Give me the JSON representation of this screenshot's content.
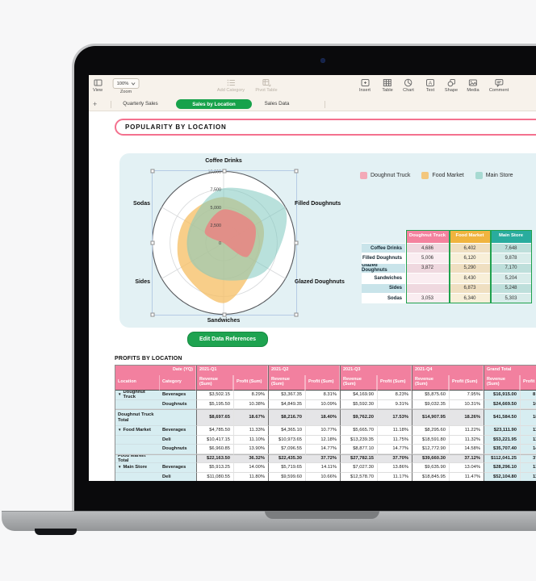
{
  "toolbar": {
    "view": {
      "label": "View"
    },
    "zoom": {
      "label": "Zoom",
      "value": "100%"
    },
    "add_category": {
      "label": "Add Category"
    },
    "pivot_table": {
      "label": "Pivot Table"
    },
    "insert": {
      "label": "Insert"
    },
    "table": {
      "label": "Table"
    },
    "chart": {
      "label": "Chart"
    },
    "text": {
      "label": "Text"
    },
    "shape": {
      "label": "Shape"
    },
    "media": {
      "label": "Media"
    },
    "comment": {
      "label": "Comment"
    }
  },
  "tabbar": {
    "add": "+",
    "tabs": [
      {
        "label": "Quarterly Sales",
        "active": false
      },
      {
        "label": "Sales by Location",
        "active": true
      },
      {
        "label": "Sales Data",
        "active": false
      }
    ]
  },
  "sheet": {
    "title": "POPULARITY BY LOCATION",
    "edit_button": "Edit Data References",
    "profits_title": "PROFITS BY LOCATION"
  },
  "legend": [
    {
      "label": "Doughnut Truck",
      "color": "#F3A9B7"
    },
    {
      "label": "Food Market",
      "color": "#F3C77D"
    },
    {
      "label": "Main Store",
      "color": "#A7DAD2"
    }
  ],
  "chart_data": {
    "type": "radar",
    "title": "Popularity by Location",
    "categories": [
      "Coffee Drinks",
      "Filled Doughnuts",
      "Glazed Doughnuts",
      "Sandwiches",
      "Sides",
      "Sodas"
    ],
    "series": [
      {
        "name": "Doughnut Truck",
        "color": "#E98583",
        "opacity": 0.85,
        "values": [
          4686,
          5006,
          3872,
          0,
          0,
          3053
        ]
      },
      {
        "name": "Food Market",
        "color": "#F5BE62",
        "opacity": 0.75,
        "values": [
          6402,
          6120,
          5290,
          8430,
          6873,
          6340
        ]
      },
      {
        "name": "Main Store",
        "color": "#7FC9C0",
        "opacity": 0.55,
        "values": [
          7648,
          9878,
          7170,
          5204,
          5248,
          5303
        ]
      }
    ],
    "r_axis": {
      "min": 0,
      "max": 10000,
      "ticks": [
        {
          "label": "10,000",
          "value": 10000
        },
        {
          "label": "7,500",
          "value": 7500
        },
        {
          "label": "5,000",
          "value": 5000
        },
        {
          "label": "2,500",
          "value": 2500
        },
        {
          "label": "0",
          "value": 0
        }
      ]
    },
    "grid": "circular",
    "legend_position": "top-right"
  },
  "popularity_table": {
    "columns": [
      "Doughnut Truck",
      "Food Market",
      "Main Store"
    ],
    "rows": [
      {
        "label": "Coffee Drinks",
        "values": [
          "4,686",
          "6,402",
          "7,648"
        ]
      },
      {
        "label": "Filled Doughnuts",
        "values": [
          "5,006",
          "6,120",
          "9,878"
        ]
      },
      {
        "label": "Glazed Doughnuts",
        "values": [
          "3,872",
          "5,290",
          "7,170"
        ]
      },
      {
        "label": "Sandwiches",
        "values": [
          "",
          "8,430",
          "5,204"
        ]
      },
      {
        "label": "Sides",
        "values": [
          "",
          "6,873",
          "5,248"
        ]
      },
      {
        "label": "Sodas",
        "values": [
          "3,053",
          "6,340",
          "5,303"
        ]
      }
    ]
  },
  "profits_table": {
    "corner_label": "Date (YQ)",
    "row_headers": [
      "Location",
      "Category"
    ],
    "groups": [
      "2021-Q1",
      "2021-Q2",
      "2021-Q3",
      "2021-Q4",
      "Grand Total"
    ],
    "sub_headers": [
      "Revenue (Sum)",
      "Profit (Sum)"
    ],
    "rows": [
      {
        "type": "data",
        "location": "Doughnut Truck",
        "disclosure": true,
        "category": "Beverages",
        "values": [
          "$3,502.15",
          "8.29%",
          "$3,367.35",
          "8.31%",
          "$4,169.90",
          "8.23%",
          "$5,875.60",
          "7.95%",
          "$16,915.00",
          "8"
        ]
      },
      {
        "type": "data",
        "location": "",
        "category": "Doughnuts",
        "values": [
          "$5,195.50",
          "10.38%",
          "$4,849.35",
          "10.09%",
          "$5,592.30",
          "9.31%",
          "$9,032.35",
          "10.31%",
          "$24,669.50",
          "10"
        ]
      },
      {
        "type": "total",
        "location": "Doughnut Truck Total",
        "category": "",
        "values": [
          "$8,697.65",
          "18.67%",
          "$8,216.70",
          "18.40%",
          "$9,762.20",
          "17.53%",
          "$14,907.95",
          "18.26%",
          "$41,584.50",
          "18"
        ]
      },
      {
        "type": "data",
        "location": "Food Market",
        "disclosure": true,
        "category": "Beverages",
        "values": [
          "$4,785.50",
          "11.33%",
          "$4,365.10",
          "10.77%",
          "$5,665.70",
          "11.18%",
          "$8,295.60",
          "11.22%",
          "$23,111.90",
          "11"
        ]
      },
      {
        "type": "data",
        "location": "",
        "category": "Deli",
        "values": [
          "$10,417.15",
          "11.10%",
          "$10,973.65",
          "12.18%",
          "$13,239.35",
          "11.75%",
          "$18,591.80",
          "11.32%",
          "$53,221.95",
          "11"
        ]
      },
      {
        "type": "data",
        "location": "",
        "category": "Doughnuts",
        "values": [
          "$6,960.85",
          "13.90%",
          "$7,096.55",
          "14.77%",
          "$8,877.10",
          "14.77%",
          "$12,772.90",
          "14.58%",
          "$35,707.40",
          "14"
        ]
      },
      {
        "type": "total",
        "location": "Food Market Total",
        "category": "",
        "values": [
          "$22,163.50",
          "36.32%",
          "$22,435.30",
          "37.72%",
          "$27,782.15",
          "37.70%",
          "$39,660.30",
          "37.12%",
          "$112,041.25",
          "37"
        ]
      },
      {
        "type": "data",
        "location": "Main Store",
        "disclosure": true,
        "category": "Beverages",
        "values": [
          "$5,913.25",
          "14.00%",
          "$5,719.65",
          "14.11%",
          "$7,027.30",
          "13.86%",
          "$9,635.90",
          "13.04%",
          "$28,296.10",
          "13"
        ]
      },
      {
        "type": "data",
        "location": "",
        "category": "Deli",
        "values": [
          "$11,080.55",
          "11.80%",
          "$9,599.60",
          "10.66%",
          "$12,578.70",
          "11.17%",
          "$18,845.95",
          "11.47%",
          "$52,104.80",
          "11"
        ]
      }
    ]
  },
  "colors": {
    "accent_green": "#17A24B",
    "header_pink": "#F2809F",
    "panel_blue": "#E3F1F4",
    "cell_blue": "#D7EDF1",
    "total_gray": "#E5E5E7",
    "title_border_pink": "#F4718E",
    "toolbar_cream": "#F7F2EB"
  }
}
